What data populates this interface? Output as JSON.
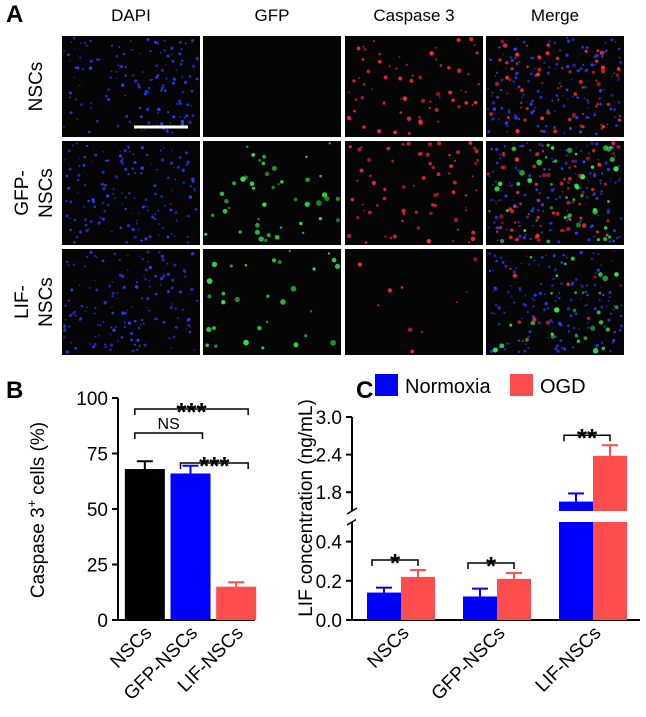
{
  "panel_a": {
    "label": "A",
    "columns": [
      "DAPI",
      "GFP",
      "Caspase 3",
      "Merge"
    ],
    "rows": [
      [
        "NSCs"
      ],
      [
        "GFP-",
        "NSCs"
      ],
      [
        "LIF-",
        "NSCs"
      ]
    ]
  },
  "chart_data": [
    {
      "type": "bar",
      "panel_label": "B",
      "y_label": {
        "text": "Caspase 3",
        "superscript": "+",
        "suffix": "cells (%)"
      },
      "categories": [
        "NSCs",
        "GFP-NSCs",
        "LIF-NSCs"
      ],
      "values": [
        68,
        66,
        15
      ],
      "errors": [
        3.5,
        3.5,
        2
      ],
      "colors": [
        "#000000",
        "#0000ff",
        "#ff4d4d"
      ],
      "ylim": [
        0,
        100
      ],
      "yticks": [
        0,
        25,
        50,
        75,
        100
      ],
      "annotations": [
        {
          "between": [
            0,
            2
          ],
          "label": "***"
        },
        {
          "between": [
            0,
            1
          ],
          "label": "NS"
        },
        {
          "between": [
            1,
            2
          ],
          "label": "***"
        }
      ]
    },
    {
      "type": "grouped_bar",
      "panel_label": "C",
      "y_label": "LIF concentration (ng/mL)",
      "categories": [
        "NSCs",
        "GFP-NSCs",
        "LIF-NSCs"
      ],
      "series": [
        {
          "name": "Normoxia",
          "color": "#0000ff",
          "values": [
            0.14,
            0.12,
            1.65
          ],
          "errors": [
            0.025,
            0.04,
            0.13
          ]
        },
        {
          "name": "OGD",
          "color": "#ff4d4d",
          "values": [
            0.22,
            0.21,
            2.38
          ],
          "errors": [
            0.035,
            0.03,
            0.17
          ]
        }
      ],
      "y_segments": [
        {
          "ylim": [
            0,
            0.5
          ],
          "yticks": [
            {
              "value": 0,
              "label": "0.0"
            },
            0.2,
            0.4
          ]
        },
        {
          "ylim": [
            1.5,
            3.0
          ],
          "yticks": [
            1.8,
            2.4,
            {
              "value": 3,
              "label": "3.0"
            }
          ]
        }
      ],
      "annotations": [
        {
          "category": 0,
          "label": "*"
        },
        {
          "category": 1,
          "label": "*"
        },
        {
          "category": 2,
          "label": "**"
        }
      ]
    }
  ]
}
